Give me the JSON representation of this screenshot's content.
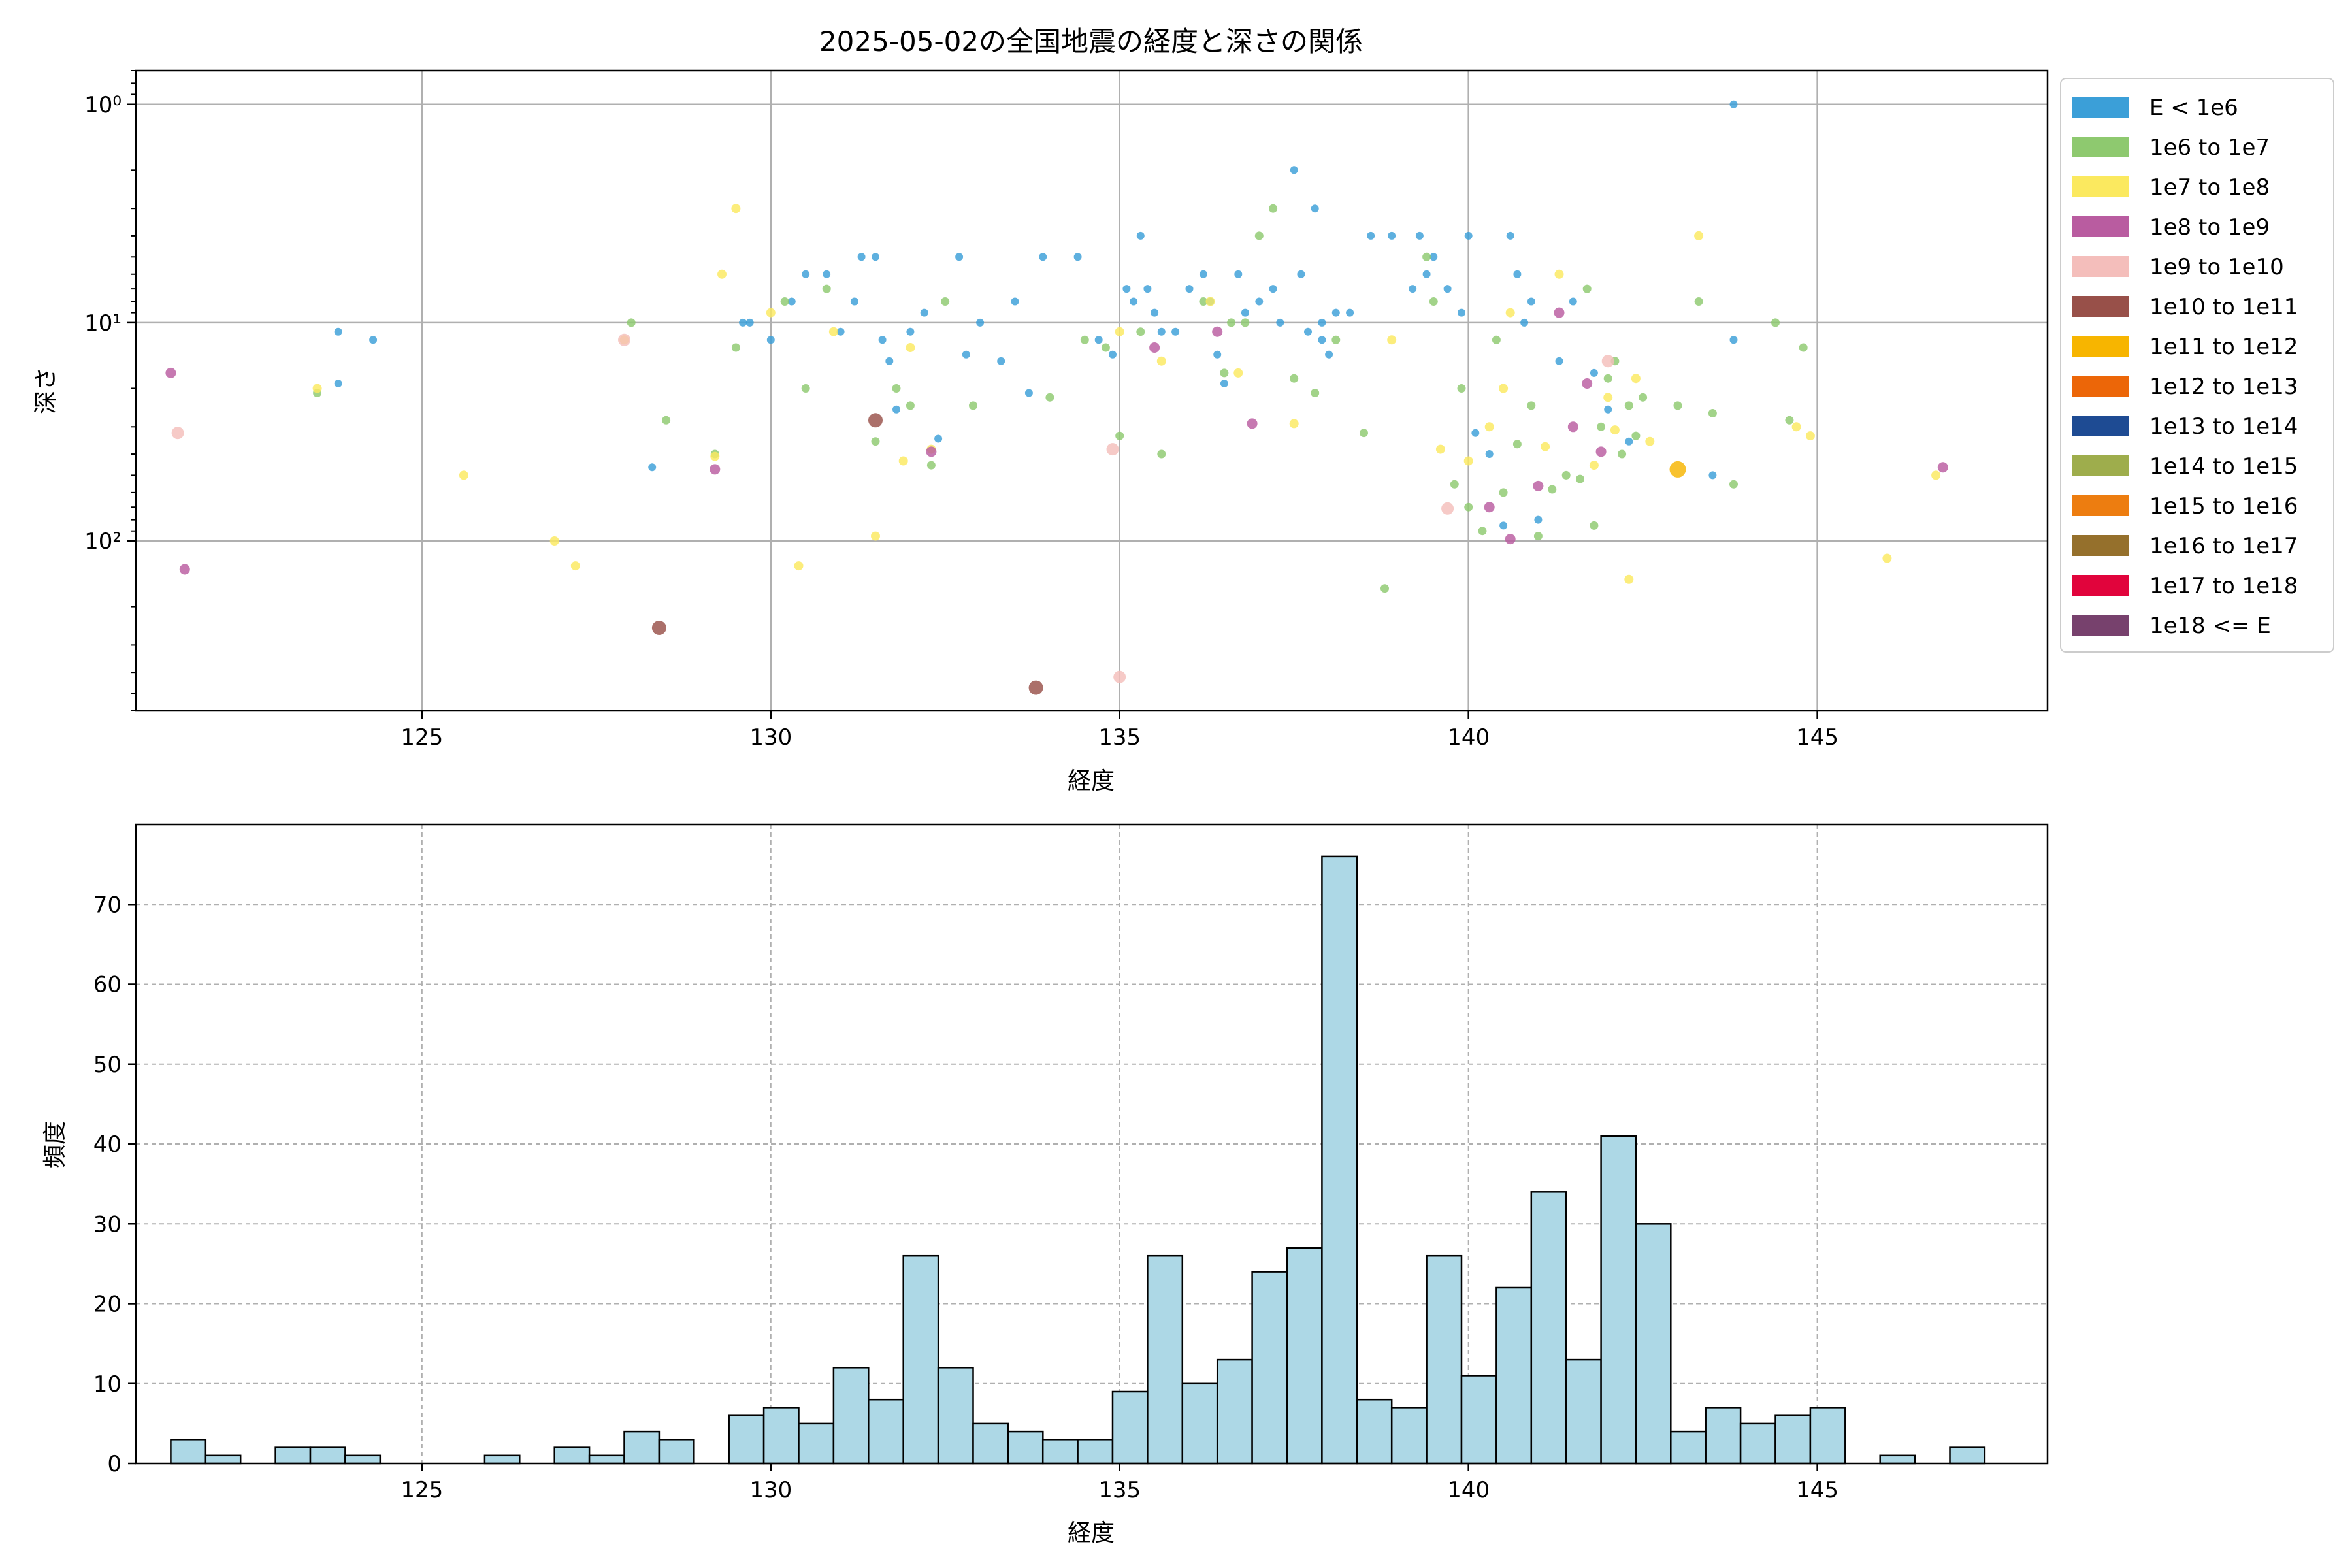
{
  "chart_data": [
    {
      "type": "scatter",
      "title": "2025-05-02の全国地震の経度と深さの関係",
      "xlabel": "経度",
      "ylabel": "深さ",
      "xlim": [
        120.9,
        148.3
      ],
      "ylim": [
        600,
        0.7
      ],
      "y_scale": "log",
      "y_inverted": true,
      "grid": true,
      "legend_position": "outside-right",
      "xticks": [
        125,
        130,
        135,
        140,
        145
      ],
      "xtick_labels": [
        "125",
        "130",
        "135",
        "140",
        "145"
      ],
      "yticks": [
        1,
        10,
        100
      ],
      "ytick_labels": [
        "10⁰",
        "10¹",
        "10²"
      ],
      "legend": [
        {
          "label": "E < 1e6",
          "color": "#3b9fd8"
        },
        {
          "label": "1e6 to 1e7",
          "color": "#8ec96f"
        },
        {
          "label": "1e7 to 1e8",
          "color": "#fbe95f"
        },
        {
          "label": "1e8 to 1e9",
          "color": "#b95ca0"
        },
        {
          "label": "1e9 to 1e10",
          "color": "#f4bebb"
        },
        {
          "label": "1e10 to 1e11",
          "color": "#985049"
        },
        {
          "label": "1e11 to 1e12",
          "color": "#f7b500"
        },
        {
          "label": "1e12 to 1e13",
          "color": "#ec6608"
        },
        {
          "label": "1e13 to 1e14",
          "color": "#1e4b93"
        },
        {
          "label": "1e14 to 1e15",
          "color": "#9ead4c"
        },
        {
          "label": "1e15 to 1e16",
          "color": "#ed7d10"
        },
        {
          "label": "1e16 to 1e17",
          "color": "#95702c"
        },
        {
          "label": "1e17 to 1e18",
          "color": "#e1043c"
        },
        {
          "label": "1e18 <= E",
          "color": "#77416d"
        }
      ],
      "series": [
        {
          "name": "E < 1e6",
          "points": [
            [
              123.8,
              11
            ],
            [
              124.3,
              12
            ],
            [
              123.8,
              19
            ],
            [
              128.3,
              46
            ],
            [
              129.7,
              10
            ],
            [
              130.0,
              12
            ],
            [
              130.3,
              8
            ],
            [
              130.5,
              6
            ],
            [
              130.8,
              6
            ],
            [
              131.0,
              11
            ],
            [
              131.2,
              8
            ],
            [
              131.5,
              5
            ],
            [
              131.6,
              12
            ],
            [
              131.7,
              15
            ],
            [
              131.8,
              25
            ],
            [
              132.0,
              11
            ],
            [
              132.2,
              9
            ],
            [
              132.4,
              34
            ],
            [
              132.7,
              5
            ],
            [
              132.8,
              14
            ],
            [
              133.0,
              10
            ],
            [
              133.3,
              15
            ],
            [
              133.5,
              8
            ],
            [
              133.7,
              21
            ],
            [
              133.9,
              5
            ],
            [
              134.4,
              5
            ],
            [
              134.7,
              12
            ],
            [
              134.9,
              14
            ],
            [
              135.1,
              7
            ],
            [
              135.2,
              8
            ],
            [
              135.3,
              4
            ],
            [
              135.4,
              7
            ],
            [
              135.5,
              9
            ],
            [
              135.8,
              11
            ],
            [
              136.0,
              7
            ],
            [
              136.2,
              6
            ],
            [
              136.4,
              14
            ],
            [
              136.5,
              19
            ],
            [
              136.7,
              6
            ],
            [
              136.8,
              9
            ],
            [
              137.0,
              8
            ],
            [
              137.2,
              7
            ],
            [
              137.3,
              10
            ],
            [
              137.5,
              2
            ],
            [
              137.6,
              6
            ],
            [
              137.7,
              11
            ],
            [
              137.8,
              3
            ],
            [
              137.9,
              12
            ],
            [
              138.0,
              14
            ],
            [
              138.3,
              9
            ],
            [
              138.6,
              4
            ],
            [
              138.9,
              4
            ],
            [
              139.2,
              7
            ],
            [
              139.3,
              4
            ],
            [
              139.4,
              6
            ],
            [
              139.5,
              5
            ],
            [
              139.7,
              7
            ],
            [
              139.9,
              9
            ],
            [
              140.0,
              4
            ],
            [
              140.1,
              32
            ],
            [
              140.3,
              40
            ],
            [
              140.5,
              85
            ],
            [
              140.6,
              4
            ],
            [
              140.7,
              6
            ],
            [
              140.9,
              8
            ],
            [
              141.0,
              80
            ],
            [
              141.3,
              15
            ],
            [
              141.5,
              8
            ],
            [
              141.8,
              17
            ],
            [
              142.0,
              25
            ],
            [
              142.3,
              35
            ],
            [
              143.5,
              50
            ],
            [
              143.8,
              1
            ],
            [
              143.8,
              12
            ],
            [
              129.6,
              10
            ],
            [
              136.3,
              8
            ],
            [
              137.9,
              10
            ],
            [
              135.6,
              11
            ],
            [
              131.3,
              5
            ],
            [
              138.1,
              9
            ],
            [
              140.8,
              10
            ]
          ]
        },
        {
          "name": "1e6 to 1e7",
          "points": [
            [
              123.5,
              21
            ],
            [
              128.0,
              10
            ],
            [
              128.5,
              28
            ],
            [
              129.2,
              40
            ],
            [
              129.5,
              13
            ],
            [
              130.2,
              8
            ],
            [
              130.5,
              20
            ],
            [
              130.8,
              7
            ],
            [
              131.5,
              35
            ],
            [
              131.8,
              20
            ],
            [
              132.0,
              24
            ],
            [
              132.3,
              45
            ],
            [
              132.5,
              8
            ],
            [
              132.9,
              24
            ],
            [
              134.0,
              22
            ],
            [
              134.5,
              12
            ],
            [
              134.8,
              13
            ],
            [
              135.0,
              33
            ],
            [
              135.3,
              11
            ],
            [
              135.6,
              40
            ],
            [
              136.2,
              8
            ],
            [
              136.5,
              17
            ],
            [
              136.8,
              10
            ],
            [
              137.0,
              4
            ],
            [
              137.2,
              3
            ],
            [
              137.5,
              18
            ],
            [
              137.8,
              21
            ],
            [
              138.1,
              12
            ],
            [
              138.5,
              32
            ],
            [
              138.8,
              165
            ],
            [
              139.5,
              8
            ],
            [
              139.8,
              55
            ],
            [
              139.9,
              20
            ],
            [
              140.0,
              70
            ],
            [
              140.2,
              90
            ],
            [
              140.4,
              12
            ],
            [
              140.5,
              60
            ],
            [
              140.7,
              36
            ],
            [
              140.9,
              24
            ],
            [
              141.0,
              95
            ],
            [
              141.2,
              58
            ],
            [
              141.4,
              50
            ],
            [
              141.6,
              52
            ],
            [
              141.8,
              85
            ],
            [
              141.9,
              30
            ],
            [
              142.0,
              18
            ],
            [
              142.1,
              15
            ],
            [
              142.2,
              40
            ],
            [
              142.3,
              24
            ],
            [
              142.5,
              22
            ],
            [
              143.0,
              24
            ],
            [
              143.3,
              8
            ],
            [
              143.5,
              26
            ],
            [
              143.8,
              55
            ],
            [
              144.4,
              10
            ],
            [
              144.6,
              28
            ],
            [
              144.8,
              13
            ],
            [
              139.4,
              5
            ],
            [
              136.6,
              10
            ],
            [
              141.7,
              7
            ],
            [
              142.4,
              33
            ]
          ]
        },
        {
          "name": "1e7 to 1e8",
          "points": [
            [
              123.5,
              20
            ],
            [
              125.6,
              50
            ],
            [
              126.9,
              100
            ],
            [
              127.2,
              130
            ],
            [
              127.9,
              12
            ],
            [
              129.2,
              41
            ],
            [
              129.3,
              6
            ],
            [
              129.5,
              3
            ],
            [
              130.0,
              9
            ],
            [
              130.4,
              130
            ],
            [
              130.9,
              11
            ],
            [
              131.5,
              95
            ],
            [
              131.9,
              43
            ],
            [
              132.0,
              13
            ],
            [
              132.3,
              38
            ],
            [
              135.0,
              11
            ],
            [
              136.3,
              8
            ],
            [
              136.7,
              17
            ],
            [
              137.5,
              29
            ],
            [
              138.9,
              12
            ],
            [
              139.6,
              38
            ],
            [
              140.0,
              43
            ],
            [
              140.3,
              30
            ],
            [
              140.5,
              20
            ],
            [
              141.1,
              37
            ],
            [
              141.3,
              6
            ],
            [
              141.8,
              45
            ],
            [
              142.0,
              22
            ],
            [
              142.1,
              31
            ],
            [
              142.4,
              18
            ],
            [
              142.6,
              35
            ],
            [
              143.3,
              4
            ],
            [
              144.7,
              30
            ],
            [
              144.9,
              33
            ],
            [
              146.0,
              120
            ],
            [
              146.7,
              50
            ],
            [
              142.3,
              150
            ],
            [
              135.6,
              15
            ],
            [
              140.6,
              9
            ]
          ]
        },
        {
          "name": "1e8 to 1e9",
          "points": [
            [
              121.4,
              17
            ],
            [
              121.6,
              135
            ],
            [
              129.2,
              47
            ],
            [
              132.3,
              39
            ],
            [
              135.5,
              13
            ],
            [
              136.4,
              11
            ],
            [
              136.9,
              29
            ],
            [
              140.3,
              70
            ],
            [
              140.6,
              98
            ],
            [
              141.0,
              56
            ],
            [
              141.3,
              9
            ],
            [
              141.5,
              30
            ],
            [
              141.7,
              19
            ],
            [
              141.9,
              39
            ],
            [
              146.8,
              46
            ]
          ]
        },
        {
          "name": "1e9 to 1e10",
          "points": [
            [
              121.5,
              32
            ],
            [
              127.9,
              12
            ],
            [
              134.9,
              38
            ],
            [
              135.0,
              420
            ],
            [
              139.7,
              71
            ],
            [
              142.0,
              15
            ]
          ]
        },
        {
          "name": "1e10 to 1e11",
          "points": [
            [
              128.4,
              250
            ],
            [
              131.5,
              28
            ],
            [
              133.8,
              470
            ]
          ]
        },
        {
          "name": "1e11 to 1e12",
          "points": [
            [
              143.0,
              47
            ]
          ]
        }
      ]
    },
    {
      "type": "bar",
      "subtype": "histogram",
      "xlabel": "経度",
      "ylabel": "頻度",
      "xlim": [
        120.9,
        148.3
      ],
      "ylim": [
        0,
        80
      ],
      "grid": true,
      "grid_style": "dashed",
      "bar_color": "#add8e6",
      "xticks": [
        125,
        130,
        135,
        140,
        145
      ],
      "xtick_labels": [
        "125",
        "130",
        "135",
        "140",
        "145"
      ],
      "yticks": [
        0,
        10,
        20,
        30,
        40,
        50,
        60,
        70
      ],
      "ytick_labels": [
        "0",
        "10",
        "20",
        "30",
        "40",
        "50",
        "60",
        "70"
      ],
      "bin_start": 121.4,
      "bin_width": 0.5,
      "values": [
        3,
        1,
        0,
        2,
        2,
        1,
        0,
        0,
        0,
        1,
        0,
        2,
        1,
        4,
        3,
        0,
        6,
        7,
        5,
        12,
        8,
        26,
        12,
        5,
        4,
        3,
        3,
        9,
        26,
        10,
        13,
        24,
        27,
        76,
        8,
        7,
        26,
        11,
        22,
        34,
        13,
        41,
        30,
        4,
        7,
        5,
        6,
        7,
        0,
        1,
        0,
        2
      ]
    }
  ]
}
